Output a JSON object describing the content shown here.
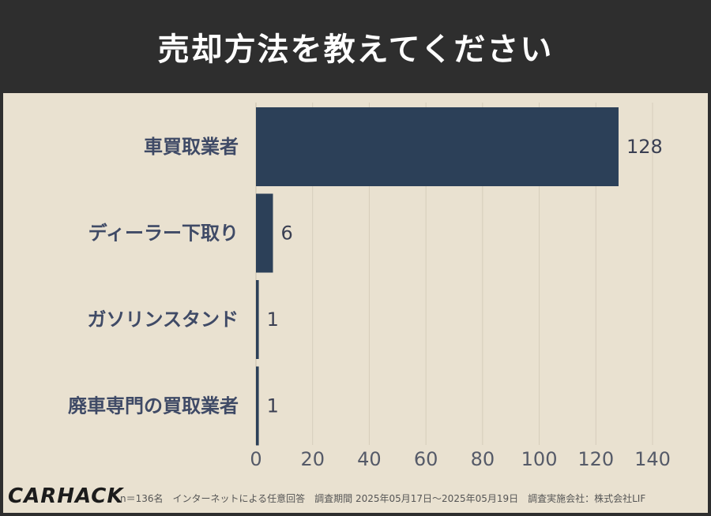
{
  "header": {
    "title": "売却方法を教えてください"
  },
  "footer": {
    "logo": "CARHACK",
    "note": "n＝136名　インターネットによる任意回答　調査期間 2025年05月17日～2025年05月19日　調査実施会社：株式会社LIF"
  },
  "colors": {
    "bar": "#2c4058",
    "category_text": "#3f4a66",
    "value_text": "#3a3f52",
    "tick_text": "#555a68",
    "grid": "#d6cdbb",
    "background": "#e9e1d0"
  },
  "chart_data": {
    "type": "bar",
    "orientation": "horizontal",
    "categories": [
      "車買取業者",
      "ディーラー下取り",
      "ガソリンスタンド",
      "廃車専門の買取業者"
    ],
    "values": [
      128,
      6,
      1,
      1
    ],
    "xlim": [
      0,
      140
    ],
    "xticks": [
      0,
      20,
      40,
      60,
      80,
      100,
      120,
      140
    ],
    "grid": true
  }
}
